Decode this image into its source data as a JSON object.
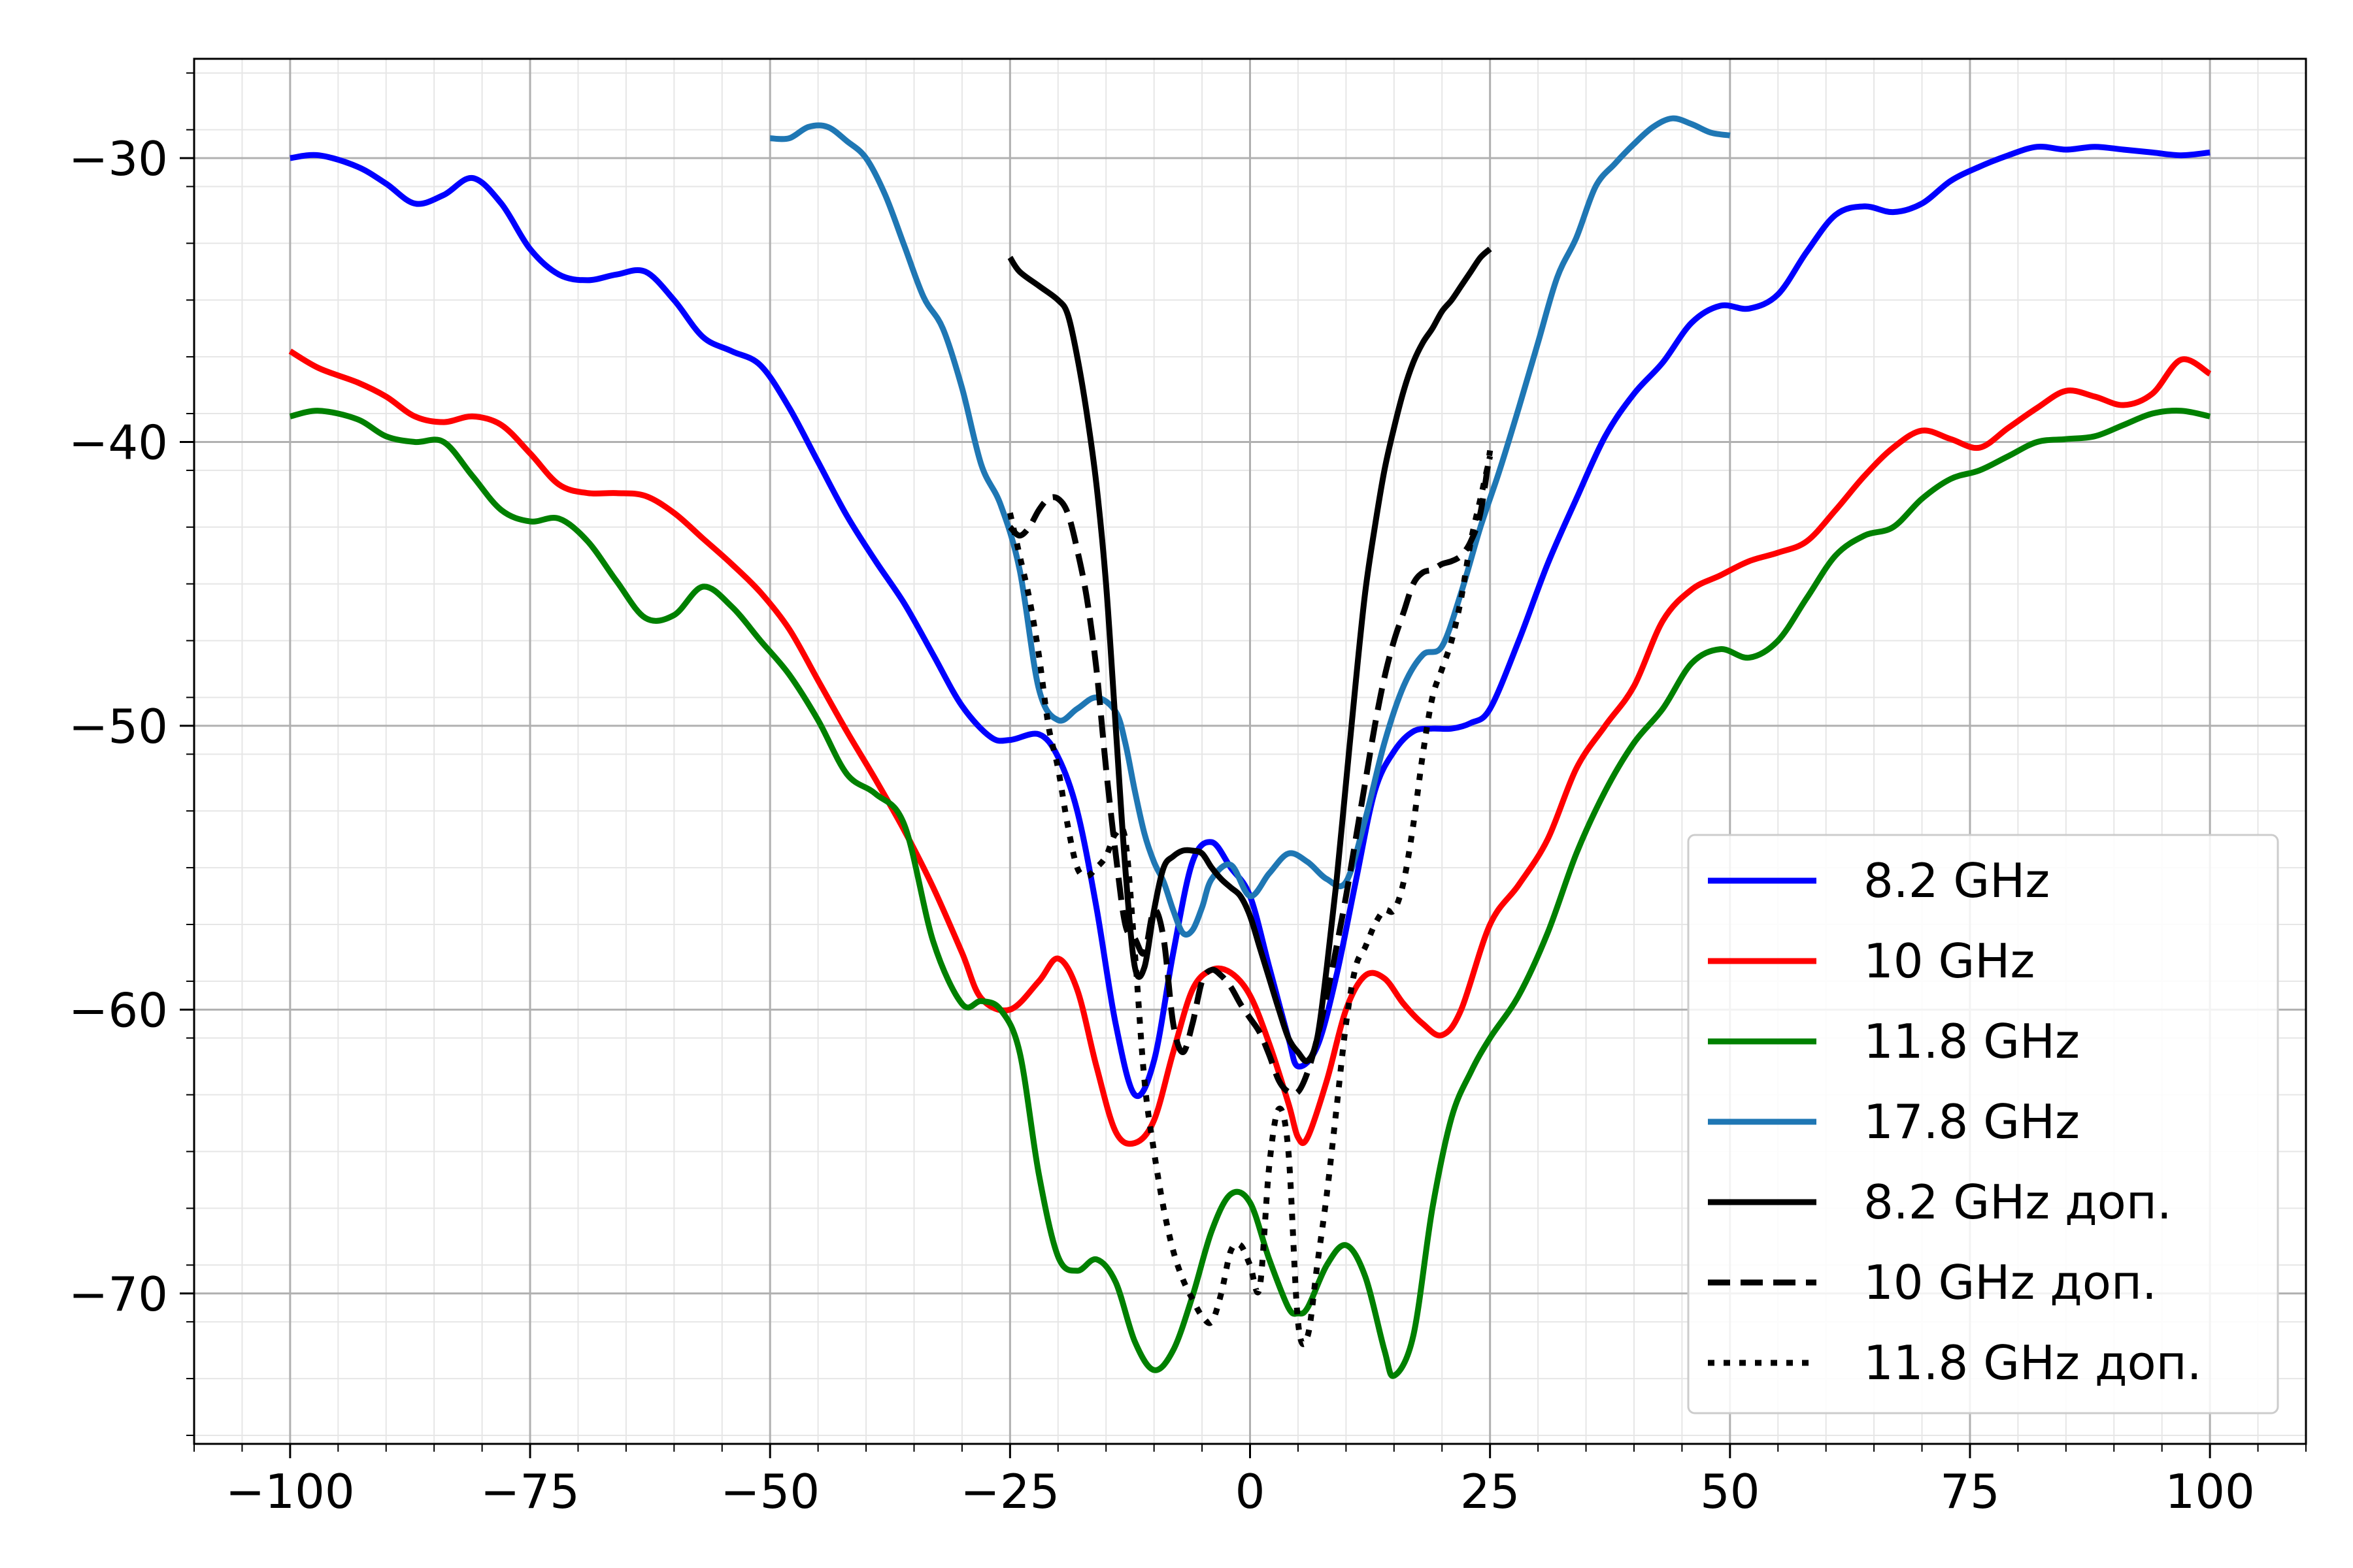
{
  "chart_data": {
    "type": "line",
    "title": "",
    "xlabel": "",
    "ylabel": "",
    "xlim": [
      -110,
      110
    ],
    "ylim": [
      -75.3,
      -26.5
    ],
    "grid": true,
    "minor_grid": true,
    "legend_position": "lower-right",
    "xticks": [
      -100,
      -75,
      -50,
      -25,
      0,
      25,
      50,
      75,
      100
    ],
    "xtick_labels": [
      "−100",
      "−75",
      "−50",
      "−25",
      "0",
      "25",
      "50",
      "75",
      "100"
    ],
    "yticks": [
      -30,
      -40,
      -50,
      -60,
      -70
    ],
    "ytick_labels": [
      "−30",
      "−40",
      "−50",
      "−60",
      "−70"
    ],
    "series": [
      {
        "name": "8.2 GHz",
        "color": "#0000ff",
        "dash": "solid",
        "x": [
          -100,
          -97,
          -93,
          -90,
          -87,
          -84,
          -81,
          -78,
          -75,
          -72,
          -69,
          -66,
          -63,
          -60,
          -57,
          -54,
          -51,
          -48,
          -45,
          -42,
          -39,
          -36,
          -33,
          -30,
          -27,
          -25,
          -22,
          -20,
          -18,
          -16,
          -14,
          -12,
          -10,
          -8,
          -6,
          -4,
          -2,
          0,
          2,
          4,
          5,
          7,
          9,
          11,
          13,
          15,
          17,
          19,
          21,
          23,
          25,
          28,
          31,
          34,
          37,
          40,
          43,
          46,
          49,
          52,
          55,
          58,
          61,
          64,
          67,
          70,
          73,
          76,
          79,
          82,
          85,
          88,
          91,
          94,
          97,
          100
        ],
        "y": [
          -30.0,
          -29.9,
          -30.3,
          -30.9,
          -31.6,
          -31.3,
          -30.7,
          -31.6,
          -33.2,
          -34.1,
          -34.3,
          -34.1,
          -34.0,
          -35.0,
          -36.3,
          -36.8,
          -37.3,
          -38.8,
          -40.7,
          -42.6,
          -44.2,
          -45.7,
          -47.5,
          -49.3,
          -50.4,
          -50.5,
          -50.3,
          -51.1,
          -53.0,
          -56.4,
          -60.5,
          -63.0,
          -61.8,
          -58.0,
          -54.8,
          -54.1,
          -55.0,
          -56.0,
          -58.5,
          -61.0,
          -62.0,
          -61.3,
          -58.8,
          -55.5,
          -52.3,
          -50.9,
          -50.2,
          -50.1,
          -50.1,
          -49.9,
          -49.4,
          -47.0,
          -44.3,
          -42.0,
          -39.8,
          -38.3,
          -37.2,
          -35.8,
          -35.2,
          -35.3,
          -34.8,
          -33.3,
          -32.0,
          -31.7,
          -31.9,
          -31.6,
          -30.8,
          -30.3,
          -29.9,
          -29.6,
          -29.7,
          -29.6,
          -29.7,
          -29.8,
          -29.9,
          -29.8
        ]
      },
      {
        "name": "10 GHz",
        "color": "#ff0000",
        "dash": "solid",
        "x": [
          -100,
          -97,
          -93,
          -90,
          -87,
          -84,
          -81,
          -78,
          -75,
          -72,
          -69,
          -66,
          -63,
          -60,
          -57,
          -54,
          -51,
          -48,
          -45,
          -42,
          -39,
          -36,
          -33,
          -30,
          -28,
          -25,
          -22,
          -20,
          -18,
          -16,
          -14,
          -12,
          -10,
          -8,
          -6,
          -4,
          -2,
          0,
          2,
          4,
          5,
          6,
          8,
          10,
          12,
          14,
          16,
          18,
          20,
          22,
          25,
          28,
          31,
          34,
          37,
          40,
          43,
          46,
          49,
          52,
          55,
          58,
          61,
          64,
          67,
          70,
          73,
          76,
          79,
          82,
          85,
          88,
          91,
          94,
          97,
          100
        ],
        "y": [
          -36.8,
          -37.4,
          -37.9,
          -38.4,
          -39.1,
          -39.3,
          -39.1,
          -39.4,
          -40.4,
          -41.5,
          -41.8,
          -41.8,
          -41.9,
          -42.5,
          -43.4,
          -44.3,
          -45.3,
          -46.6,
          -48.4,
          -50.2,
          -51.9,
          -53.7,
          -55.7,
          -58.0,
          -59.6,
          -60.0,
          -59.0,
          -58.2,
          -59.3,
          -62.0,
          -64.3,
          -64.7,
          -63.9,
          -61.5,
          -59.3,
          -58.6,
          -58.7,
          -59.5,
          -61.2,
          -63.3,
          -64.5,
          -64.5,
          -62.5,
          -60.0,
          -58.8,
          -58.9,
          -59.8,
          -60.5,
          -60.9,
          -60.0,
          -57.0,
          -55.6,
          -54.0,
          -51.5,
          -50.0,
          -48.6,
          -46.3,
          -45.2,
          -44.7,
          -44.2,
          -43.9,
          -43.5,
          -42.4,
          -41.2,
          -40.2,
          -39.6,
          -39.9,
          -40.2,
          -39.5,
          -38.8,
          -38.2,
          -38.4,
          -38.7,
          -38.3,
          -37.1,
          -37.6
        ]
      },
      {
        "name": "11.8 GHz",
        "color": "#008000",
        "dash": "solid",
        "x": [
          -100,
          -97,
          -93,
          -90,
          -87,
          -84,
          -81,
          -78,
          -75,
          -72,
          -69,
          -66,
          -63,
          -60,
          -57,
          -54,
          -51,
          -48,
          -45,
          -42,
          -39,
          -36,
          -33,
          -30,
          -28,
          -26,
          -24,
          -22,
          -20,
          -18,
          -16,
          -14,
          -12,
          -10,
          -8,
          -6,
          -4,
          -2,
          0,
          2,
          4,
          5,
          6,
          8,
          10,
          12,
          14,
          15,
          17,
          19,
          21,
          23,
          25,
          28,
          31,
          34,
          37,
          40,
          43,
          46,
          49,
          52,
          55,
          58,
          61,
          64,
          67,
          70,
          73,
          76,
          79,
          82,
          85,
          88,
          91,
          94,
          97,
          100
        ],
        "y": [
          -39.1,
          -38.9,
          -39.2,
          -39.8,
          -40.0,
          -40.0,
          -41.2,
          -42.4,
          -42.8,
          -42.7,
          -43.5,
          -44.9,
          -46.2,
          -46.1,
          -45.1,
          -45.8,
          -47.0,
          -48.2,
          -49.8,
          -51.7,
          -52.4,
          -53.5,
          -57.6,
          -59.8,
          -59.7,
          -60.0,
          -61.5,
          -65.8,
          -68.7,
          -69.2,
          -68.8,
          -69.6,
          -71.7,
          -72.7,
          -72.0,
          -70.1,
          -67.8,
          -66.5,
          -66.8,
          -68.8,
          -70.5,
          -70.7,
          -70.5,
          -69.0,
          -68.3,
          -69.4,
          -72.0,
          -72.9,
          -71.5,
          -67.0,
          -63.8,
          -62.2,
          -61.0,
          -59.5,
          -57.3,
          -54.5,
          -52.3,
          -50.6,
          -49.4,
          -47.8,
          -47.3,
          -47.6,
          -47.0,
          -45.5,
          -44.0,
          -43.3,
          -43.0,
          -42.0,
          -41.3,
          -41.0,
          -40.5,
          -40.0,
          -39.9,
          -39.8,
          -39.4,
          -39.0,
          -38.9,
          -39.1
        ]
      },
      {
        "name": "17.8 GHz",
        "color": "#1f77b4",
        "dash": "solid",
        "x": [
          -50,
          -48,
          -46,
          -44,
          -42,
          -40,
          -38,
          -36,
          -34,
          -32,
          -30,
          -28,
          -26,
          -24,
          -22,
          -20,
          -18,
          -16,
          -14,
          -13,
          -12,
          -11,
          -10,
          -9,
          -8,
          -7,
          -6,
          -5,
          -4,
          -2,
          0,
          2,
          4,
          6,
          8,
          10,
          12,
          14,
          16,
          18,
          20,
          22,
          24,
          26,
          28,
          30,
          32,
          34,
          36,
          38,
          40,
          42,
          44,
          46,
          48,
          50
        ],
        "y": [
          -29.3,
          -29.3,
          -28.9,
          -28.9,
          -29.4,
          -30.0,
          -31.3,
          -33.1,
          -34.9,
          -36.0,
          -38.1,
          -40.8,
          -42.2,
          -44.5,
          -48.7,
          -49.8,
          -49.4,
          -49.0,
          -49.5,
          -50.6,
          -52.3,
          -53.8,
          -54.8,
          -55.5,
          -56.5,
          -57.3,
          -57.2,
          -56.4,
          -55.4,
          -54.9,
          -56.0,
          -55.2,
          -54.5,
          -54.8,
          -55.4,
          -55.5,
          -53.3,
          -50.6,
          -48.6,
          -47.5,
          -47.2,
          -45.3,
          -43.0,
          -41.0,
          -38.8,
          -36.5,
          -34.2,
          -32.8,
          -31.0,
          -30.2,
          -29.5,
          -28.9,
          -28.6,
          -28.8,
          -29.1,
          -29.2
        ]
      },
      {
        "name": "8.2 GHz доп.",
        "color": "#000000",
        "dash": "solid",
        "x": [
          -25,
          -24,
          -22,
          -20,
          -19,
          -18,
          -17,
          -16,
          -15,
          -14,
          -13,
          -12,
          -11,
          -10,
          -9,
          -8,
          -7,
          -6,
          -5,
          -4,
          -3,
          -2,
          -1,
          0,
          1,
          2,
          3,
          4,
          5,
          6,
          7,
          8,
          9,
          10,
          11,
          12,
          13,
          14,
          15,
          16,
          17,
          18,
          19,
          20,
          21,
          22,
          23,
          24,
          25
        ],
        "y": [
          -33.5,
          -34.0,
          -34.5,
          -35.0,
          -35.5,
          -37.0,
          -39.0,
          -41.5,
          -45.0,
          -50.0,
          -55.0,
          -58.5,
          -58.5,
          -56.5,
          -55.0,
          -54.6,
          -54.4,
          -54.4,
          -54.5,
          -55.0,
          -55.4,
          -55.7,
          -56.0,
          -56.7,
          -57.8,
          -58.9,
          -60.0,
          -61.0,
          -61.5,
          -61.8,
          -61.0,
          -58.5,
          -55.5,
          -52.0,
          -48.5,
          -45.3,
          -43.0,
          -41.0,
          -39.5,
          -38.2,
          -37.2,
          -36.5,
          -36.0,
          -35.4,
          -35.0,
          -34.5,
          -34.0,
          -33.5,
          -33.2
        ]
      },
      {
        "name": "10 GHz доп.",
        "color": "#000000",
        "dash": "dashed",
        "x": [
          -25,
          -24,
          -23,
          -22,
          -21,
          -20,
          -19,
          -18,
          -17,
          -16,
          -15,
          -14,
          -13,
          -12,
          -11,
          -10,
          -9,
          -8,
          -7,
          -6,
          -5,
          -4,
          -3,
          -2,
          -1,
          0,
          1,
          2,
          3,
          4,
          5,
          6,
          7,
          8,
          9,
          10,
          11,
          12,
          13,
          14,
          15,
          16,
          17,
          18,
          19,
          20,
          21,
          22,
          23,
          24,
          25
        ],
        "y": [
          -43.0,
          -43.3,
          -43.0,
          -42.4,
          -42.0,
          -42.0,
          -42.5,
          -43.8,
          -45.5,
          -48.0,
          -51.5,
          -54.5,
          -57.0,
          -57.5,
          -58.0,
          -56.5,
          -57.5,
          -60.5,
          -61.5,
          -60.5,
          -59.0,
          -58.6,
          -58.8,
          -59.2,
          -59.8,
          -60.3,
          -60.8,
          -61.6,
          -62.5,
          -62.9,
          -62.9,
          -62.2,
          -61.0,
          -59.5,
          -57.8,
          -56.0,
          -54.0,
          -52.0,
          -50.0,
          -48.3,
          -47.0,
          -46.0,
          -45.0,
          -44.6,
          -44.5,
          -44.3,
          -44.2,
          -44.0,
          -43.5,
          -42.5,
          -40.3
        ]
      },
      {
        "name": "11.8 GHz доп.",
        "color": "#000000",
        "dash": "dotted",
        "x": [
          -25,
          -24,
          -23,
          -22,
          -21,
          -20,
          -19,
          -18,
          -17,
          -16,
          -15,
          -14,
          -13,
          -12,
          -11,
          -10,
          -9,
          -8,
          -7,
          -6,
          -5,
          -4,
          -3,
          -2,
          -1,
          0,
          1,
          2,
          3,
          4,
          5,
          6,
          7,
          8,
          9,
          10,
          11,
          12,
          13,
          14,
          15,
          16,
          17,
          18,
          19,
          20,
          21,
          22,
          23,
          24,
          25
        ],
        "y": [
          -42.5,
          -44.0,
          -45.5,
          -47.5,
          -50.0,
          -51.5,
          -53.5,
          -55.0,
          -55.3,
          -55.0,
          -54.6,
          -53.8,
          -54.0,
          -58.0,
          -62.5,
          -65.0,
          -67.0,
          -68.5,
          -69.5,
          -70.2,
          -70.8,
          -71.0,
          -70.0,
          -68.5,
          -68.3,
          -69.0,
          -69.8,
          -65.5,
          -63.5,
          -65.0,
          -71.0,
          -71.5,
          -69.0,
          -66.5,
          -63.5,
          -60.5,
          -58.5,
          -57.8,
          -57.0,
          -56.5,
          -56.5,
          -55.5,
          -53.5,
          -51.0,
          -49.0,
          -48.0,
          -47.0,
          -45.5,
          -43.5,
          -42.0,
          -40.5
        ]
      }
    ]
  }
}
